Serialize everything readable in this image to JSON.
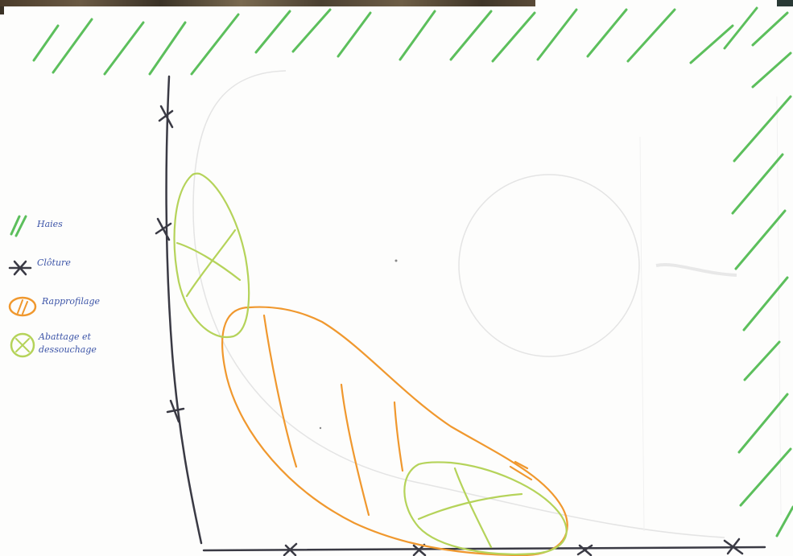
{
  "legend": {
    "items": [
      {
        "label": "Haies",
        "symbol": "hedge-hatch-icon",
        "color": "#5cbf5c"
      },
      {
        "label": "Clôture",
        "symbol": "fence-cross-icon",
        "color": "#3a3a44"
      },
      {
        "label": "Rapprofilage",
        "symbol": "orange-hatched-ellipse-icon",
        "color": "#f0982e"
      },
      {
        "label": "Abattage et\ndessouchage",
        "symbol": "green-crossed-ellipse-icon",
        "color": "#b5d35a"
      }
    ]
  },
  "colors": {
    "hedge": "#5cbf5c",
    "fence": "#3a3a44",
    "reprofile_zone": "#f0982e",
    "felling_zone": "#b5d35a",
    "legend_text": "#3d55a8",
    "faint_pencil": "#e2e2e2"
  }
}
